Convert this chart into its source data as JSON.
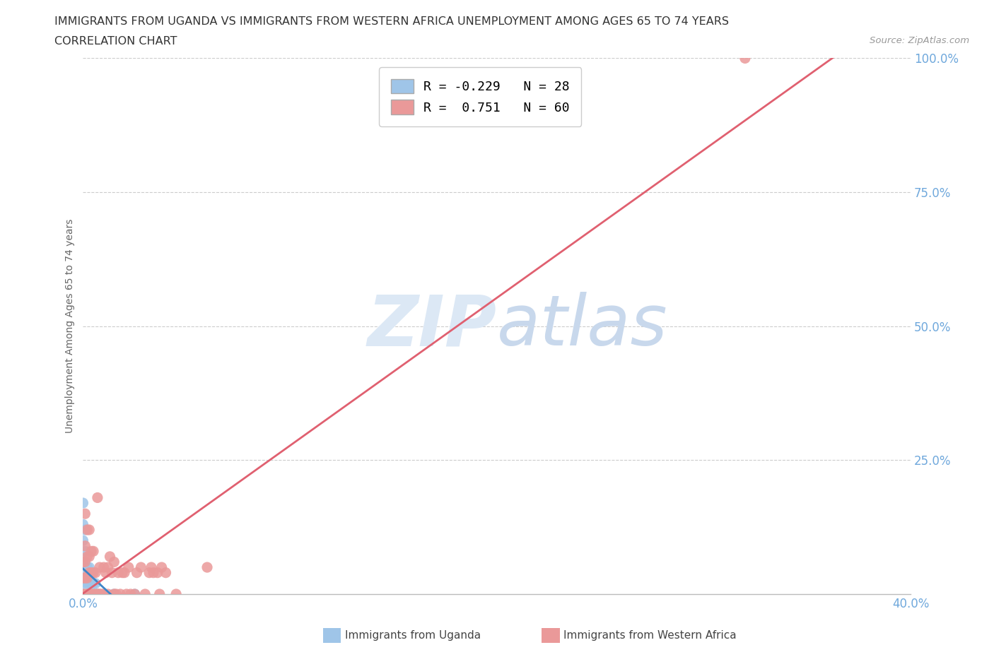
{
  "title_line1": "IMMIGRANTS FROM UGANDA VS IMMIGRANTS FROM WESTERN AFRICA UNEMPLOYMENT AMONG AGES 65 TO 74 YEARS",
  "title_line2": "CORRELATION CHART",
  "source_text": "Source: ZipAtlas.com",
  "ylabel": "Unemployment Among Ages 65 to 74 years",
  "xlim": [
    0.0,
    0.4
  ],
  "ylim": [
    0.0,
    1.0
  ],
  "xtick_positions": [
    0.0,
    0.05,
    0.1,
    0.15,
    0.2,
    0.25,
    0.3,
    0.35,
    0.4
  ],
  "ytick_positions": [
    0.0,
    0.25,
    0.5,
    0.75,
    1.0
  ],
  "uganda_r": -0.229,
  "uganda_n": 28,
  "wa_r": 0.751,
  "wa_n": 60,
  "uganda_scatter_color": "#9fc5e8",
  "wa_scatter_color": "#ea9999",
  "uganda_line_color": "#3d85c8",
  "wa_line_color": "#e06070",
  "watermark_color": "#dce8f5",
  "grid_color": "#cccccc",
  "axis_tick_color": "#6fa8dc",
  "axis_label_color": "#666666",
  "title_color": "#333333",
  "source_color": "#999999",
  "background_color": "#ffffff",
  "uganda_scatter_x": [
    0.0,
    0.0,
    0.0,
    0.0,
    0.0,
    0.0,
    0.0,
    0.001,
    0.001,
    0.001,
    0.001,
    0.002,
    0.002,
    0.002,
    0.002,
    0.003,
    0.003,
    0.003,
    0.004,
    0.004,
    0.005,
    0.005,
    0.006,
    0.006,
    0.007,
    0.008,
    0.015,
    0.025
  ],
  "uganda_scatter_y": [
    0.0,
    0.02,
    0.04,
    0.06,
    0.1,
    0.13,
    0.17,
    0.0,
    0.03,
    0.08,
    0.12,
    0.0,
    0.02,
    0.05,
    0.0,
    0.0,
    0.02,
    0.05,
    0.0,
    0.02,
    0.0,
    0.02,
    0.0,
    0.02,
    0.0,
    0.0,
    0.0,
    0.0
  ],
  "wa_scatter_x": [
    0.0,
    0.0,
    0.0,
    0.001,
    0.001,
    0.001,
    0.001,
    0.001,
    0.002,
    0.002,
    0.002,
    0.002,
    0.003,
    0.003,
    0.003,
    0.003,
    0.004,
    0.004,
    0.004,
    0.005,
    0.005,
    0.005,
    0.006,
    0.006,
    0.007,
    0.007,
    0.008,
    0.008,
    0.009,
    0.01,
    0.01,
    0.011,
    0.012,
    0.012,
    0.013,
    0.014,
    0.015,
    0.015,
    0.016,
    0.017,
    0.018,
    0.019,
    0.02,
    0.021,
    0.022,
    0.023,
    0.025,
    0.026,
    0.028,
    0.03,
    0.032,
    0.033,
    0.034,
    0.036,
    0.037,
    0.038,
    0.04,
    0.045,
    0.06,
    0.32
  ],
  "wa_scatter_y": [
    0.0,
    0.03,
    0.06,
    0.0,
    0.03,
    0.06,
    0.09,
    0.15,
    0.0,
    0.03,
    0.07,
    0.12,
    0.0,
    0.04,
    0.07,
    0.12,
    0.0,
    0.04,
    0.08,
    0.0,
    0.04,
    0.08,
    0.0,
    0.04,
    0.0,
    0.18,
    0.0,
    0.05,
    0.0,
    0.0,
    0.05,
    0.04,
    0.0,
    0.05,
    0.07,
    0.04,
    0.0,
    0.06,
    0.0,
    0.04,
    0.0,
    0.04,
    0.04,
    0.0,
    0.05,
    0.0,
    0.0,
    0.04,
    0.05,
    0.0,
    0.04,
    0.05,
    0.04,
    0.04,
    0.0,
    0.05,
    0.04,
    0.0,
    0.05,
    1.0
  ],
  "legend_label_uganda": "R = -0.229   N = 28",
  "legend_label_wa": "R =  0.751   N = 60",
  "bottom_legend_uganda": "Immigrants from Uganda",
  "bottom_legend_wa": "Immigrants from Western Africa"
}
